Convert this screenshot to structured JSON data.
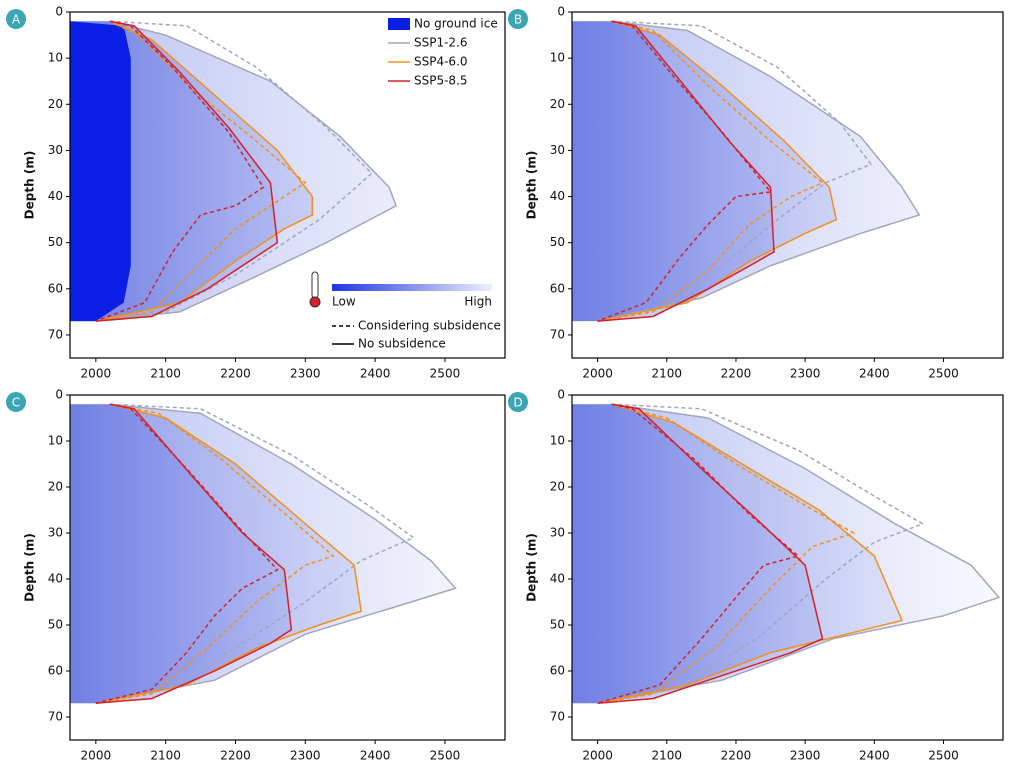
{
  "chart_data": [
    {
      "type": "line",
      "label": "A",
      "ylabel": "Depth (m)",
      "xlim": [
        1963,
        2586
      ],
      "ylim": [
        0,
        75
      ],
      "y_inverted": true,
      "xticks": [
        2000,
        2100,
        2200,
        2300,
        2400,
        2500
      ],
      "yticks": [
        0,
        10,
        20,
        30,
        40,
        50,
        60,
        70
      ],
      "no_ground_ice": {
        "name": "No ground ice",
        "color": "#0a1ee6",
        "x": [
          1963,
          2040,
          2050,
          2050,
          2040,
          2000,
          1963
        ],
        "y": [
          2,
          3,
          10,
          55,
          63,
          67,
          67
        ]
      },
      "colorbar": {
        "low": "Low",
        "high": "High"
      },
      "line_styles": {
        "subsidence": "Considering subsidence",
        "no_subsidence": "No subsidence"
      },
      "series": [
        {
          "name": "SSP1-2.6",
          "color": "#a3a6bb",
          "no_subsidence": {
            "x": [
              2020,
              2100,
              2250,
              2350,
              2420,
              2430,
              2330,
              2220,
              2120,
              2000
            ],
            "y": [
              2,
              5,
              15,
              27,
              38,
              42,
              50,
              58,
              65,
              67
            ]
          },
          "subsidence": {
            "x": [
              2020,
              2130,
              2230,
              2330,
              2395,
              2320,
              2200,
              2100,
              2000
            ],
            "y": [
              2,
              3,
              12,
              25,
              35,
              45,
              57,
              65,
              67
            ]
          }
        },
        {
          "name": "SSP4-6.0",
          "color": "#f0901e",
          "no_subsidence": {
            "x": [
              2020,
              2080,
              2170,
              2260,
              2310,
              2310,
              2270,
              2200,
              2120,
              2000
            ],
            "y": [
              2,
              6,
              18,
              30,
              40,
              44,
              47,
              54,
              63,
              67
            ]
          },
          "subsidence": {
            "x": [
              2020,
              2060,
              2140,
              2230,
              2300,
              2260,
              2200,
              2140,
              2080,
              2000
            ],
            "y": [
              2,
              5,
              17,
              28,
              37,
              41,
              47,
              56,
              65,
              67
            ]
          }
        },
        {
          "name": "SSP5-8.5",
          "color": "#d4202a",
          "no_subsidence": {
            "x": [
              2020,
              2055,
              2120,
              2190,
              2250,
              2260,
              2230,
              2160,
              2080,
              2000
            ],
            "y": [
              2,
              3,
              13,
              25,
              37,
              50,
              53,
              60,
              66,
              67
            ]
          },
          "subsidence": {
            "x": [
              2020,
              2050,
              2110,
              2190,
              2240,
              2200,
              2150,
              2110,
              2070,
              2000
            ],
            "y": [
              2,
              3,
              12,
              26,
              38,
              42,
              44,
              52,
              63,
              67
            ]
          }
        }
      ]
    },
    {
      "type": "line",
      "label": "B",
      "ylabel": "Depth (m)",
      "xlim": [
        1963,
        2586
      ],
      "ylim": [
        0,
        75
      ],
      "y_inverted": true,
      "xticks": [
        2000,
        2100,
        2200,
        2300,
        2400,
        2500
      ],
      "yticks": [
        0,
        10,
        20,
        30,
        40,
        50,
        60,
        70
      ],
      "series": [
        {
          "color": "#a3a6bb",
          "no_subsidence": {
            "x": [
              2020,
              2130,
              2250,
              2380,
              2440,
              2465,
              2380,
              2250,
              2150,
              2000
            ],
            "y": [
              2,
              4,
              14,
              27,
              38,
              44,
              48,
              55,
              62,
              67
            ]
          },
          "subsidence": {
            "x": [
              2020,
              2150,
              2260,
              2350,
              2395,
              2330,
              2260,
              2180,
              2100,
              2000
            ],
            "y": [
              2,
              3,
              12,
              24,
              33,
              37,
              45,
              55,
              64,
              67
            ]
          }
        },
        {
          "color": "#f0901e",
          "no_subsidence": {
            "x": [
              2020,
              2090,
              2180,
              2270,
              2335,
              2345,
              2300,
              2220,
              2130,
              2000
            ],
            "y": [
              2,
              5,
              16,
              28,
              38,
              45,
              48,
              54,
              63,
              67
            ]
          },
          "subsidence": {
            "x": [
              2020,
              2080,
              2160,
              2250,
              2325,
              2280,
              2220,
              2160,
              2080,
              2000
            ],
            "y": [
              2,
              4,
              16,
              28,
              37,
              40,
              46,
              56,
              65,
              67
            ]
          }
        },
        {
          "color": "#d4202a",
          "no_subsidence": {
            "x": [
              2020,
              2055,
              2120,
              2190,
              2250,
              2255,
              2220,
              2160,
              2080,
              2000
            ],
            "y": [
              2,
              3,
              15,
              28,
              38,
              52,
              55,
              60,
              66,
              67
            ]
          },
          "subsidence": {
            "x": [
              2020,
              2050,
              2110,
              2180,
              2250,
              2200,
              2160,
              2120,
              2070,
              2000
            ],
            "y": [
              2,
              3,
              14,
              26,
              39,
              40,
              46,
              53,
              63,
              67
            ]
          }
        }
      ]
    },
    {
      "type": "line",
      "label": "C",
      "ylabel": "Depth (m)",
      "xlim": [
        1963,
        2586
      ],
      "ylim": [
        0,
        75
      ],
      "y_inverted": true,
      "xticks": [
        2000,
        2100,
        2200,
        2300,
        2400,
        2500
      ],
      "yticks": [
        0,
        10,
        20,
        30,
        40,
        50,
        60,
        70
      ],
      "series": [
        {
          "color": "#a3a6bb",
          "no_subsidence": {
            "x": [
              2020,
              2150,
              2280,
              2400,
              2480,
              2515,
              2430,
              2300,
              2170,
              2000
            ],
            "y": [
              2,
              4,
              15,
              27,
              36,
              42,
              46,
              52,
              62,
              67
            ]
          },
          "subsidence": {
            "x": [
              2020,
              2150,
              2280,
              2390,
              2455,
              2380,
              2300,
              2200,
              2100,
              2000
            ],
            "y": [
              2,
              3,
              13,
              24,
              31,
              36,
              45,
              55,
              64,
              67
            ]
          }
        },
        {
          "color": "#f0901e",
          "no_subsidence": {
            "x": [
              2020,
              2100,
              2200,
              2300,
              2370,
              2380,
              2320,
              2230,
              2130,
              2000
            ],
            "y": [
              2,
              5,
              15,
              28,
              37,
              47,
              50,
              55,
              63,
              67
            ]
          },
          "subsidence": {
            "x": [
              2020,
              2090,
              2180,
              2280,
              2340,
              2300,
              2230,
              2160,
              2080,
              2000
            ],
            "y": [
              2,
              4,
              14,
              27,
              35,
              37,
              45,
              55,
              65,
              67
            ]
          }
        },
        {
          "color": "#d4202a",
          "no_subsidence": {
            "x": [
              2020,
              2055,
              2140,
              2210,
              2270,
              2280,
              2250,
              2170,
              2080,
              2000
            ],
            "y": [
              2,
              3,
              18,
              30,
              38,
              51,
              54,
              60,
              66,
              67
            ]
          },
          "subsidence": {
            "x": [
              2020,
              2050,
              2130,
              2200,
              2260,
              2210,
              2170,
              2130,
              2080,
              2000
            ],
            "y": [
              2,
              3,
              16,
              28,
              38,
              42,
              48,
              56,
              64,
              67
            ]
          }
        }
      ]
    },
    {
      "type": "line",
      "label": "D",
      "ylabel": "Depth (m)",
      "xlim": [
        1963,
        2586
      ],
      "ylim": [
        0,
        75
      ],
      "y_inverted": true,
      "xticks": [
        2000,
        2100,
        2200,
        2300,
        2400,
        2500
      ],
      "yticks": [
        0,
        10,
        20,
        30,
        40,
        50,
        60,
        70
      ],
      "series": [
        {
          "color": "#a3a6bb",
          "no_subsidence": {
            "x": [
              2020,
              2160,
              2300,
              2430,
              2540,
              2580,
              2500,
              2340,
              2180,
              2000
            ],
            "y": [
              2,
              5,
              16,
              28,
              37,
              44,
              48,
              53,
              62,
              67
            ]
          },
          "subsidence": {
            "x": [
              2020,
              2150,
              2290,
              2400,
              2470,
              2400,
              2330,
              2230,
              2110,
              2000
            ],
            "y": [
              2,
              3,
              12,
              22,
              28,
              32,
              40,
              53,
              64,
              67
            ]
          }
        },
        {
          "color": "#f0901e",
          "no_subsidence": {
            "x": [
              2020,
              2110,
              2220,
              2320,
              2400,
              2440,
              2360,
              2250,
              2130,
              2000
            ],
            "y": [
              2,
              6,
              16,
              25,
              35,
              49,
              52,
              56,
              63,
              67
            ]
          },
          "subsidence": {
            "x": [
              2020,
              2100,
              2200,
              2300,
              2370,
              2310,
              2250,
              2170,
              2080,
              2000
            ],
            "y": [
              2,
              5,
              15,
              24,
              30,
              33,
              42,
              55,
              65,
              67
            ]
          }
        },
        {
          "color": "#d4202a",
          "no_subsidence": {
            "x": [
              2020,
              2060,
              2150,
              2230,
              2300,
              2325,
              2280,
              2180,
              2080,
              2000
            ],
            "y": [
              2,
              3,
              16,
              27,
              37,
              53,
              56,
              61,
              66,
              67
            ]
          },
          "subsidence": {
            "x": [
              2020,
              2050,
              2140,
              2220,
              2290,
              2240,
              2200,
              2150,
              2090,
              2000
            ],
            "y": [
              2,
              3,
              14,
              26,
              35,
              37,
              44,
              53,
              63,
              67
            ]
          }
        }
      ]
    }
  ]
}
